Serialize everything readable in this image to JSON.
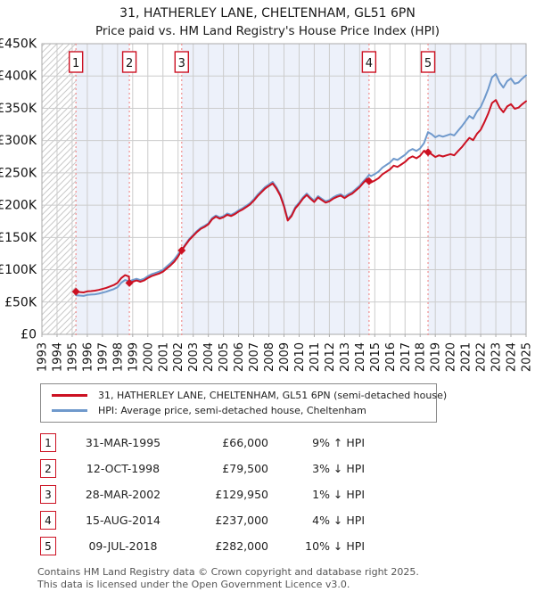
{
  "title": "31, HATHERLEY LANE, CHELTENHAM, GL51 6PN",
  "subtitle": "Price paid vs. HM Land Registry's House Price Index (HPI)",
  "colors": {
    "property_line": "#cc1122",
    "hpi_line": "#6f99cc",
    "band": "#edf1fa",
    "grid": "#cccccc",
    "frame": "#aaaaaa",
    "dashed_sale_line": "#f08f8f",
    "flag_border": "#cc1122",
    "hatch": "#c9c9c9",
    "axis_text": "#111111"
  },
  "chart_data": {
    "type": "line",
    "x_min": 1993,
    "x_max": 2025,
    "y_max": 450,
    "y_ticks": [
      {
        "v": 0,
        "label": "£0"
      },
      {
        "v": 50,
        "label": "£50K"
      },
      {
        "v": 100,
        "label": "£100K"
      },
      {
        "v": 150,
        "label": "£150K"
      },
      {
        "v": 200,
        "label": "£200K"
      },
      {
        "v": 250,
        "label": "£250K"
      },
      {
        "v": 300,
        "label": "£300K"
      },
      {
        "v": 350,
        "label": "£350K"
      },
      {
        "v": 400,
        "label": "£400K"
      },
      {
        "v": 450,
        "label": "£450K"
      }
    ],
    "sales": [
      {
        "n": 1,
        "year": 1995.25,
        "price_k": 66,
        "date": "31-MAR-1995",
        "price": "£66,000",
        "pct": "9% ↑ HPI"
      },
      {
        "n": 2,
        "year": 1998.78,
        "price_k": 79.5,
        "date": "12-OCT-1998",
        "price": "£79,500",
        "pct": "3% ↓ HPI"
      },
      {
        "n": 3,
        "year": 2002.24,
        "price_k": 129.95,
        "date": "28-MAR-2002",
        "price": "£129,950",
        "pct": "1% ↓ HPI"
      },
      {
        "n": 4,
        "year": 2014.62,
        "price_k": 237,
        "date": "15-AUG-2014",
        "price": "£237,000",
        "pct": "4% ↓ HPI"
      },
      {
        "n": 5,
        "year": 2018.52,
        "price_k": 282,
        "date": "09-JUL-2018",
        "price": "£282,000",
        "pct": "10% ↓ HPI"
      }
    ],
    "series": [
      {
        "name": "HPI: Average price, semi-detached house, Cheltenham",
        "color_key": "hpi_line",
        "points": [
          [
            1995.25,
            60.5
          ],
          [
            1995.5,
            60
          ],
          [
            1995.75,
            59.5
          ],
          [
            1996,
            61
          ],
          [
            1996.25,
            61.5
          ],
          [
            1996.5,
            62
          ],
          [
            1996.75,
            63
          ],
          [
            1997,
            64.5
          ],
          [
            1997.25,
            66
          ],
          [
            1997.5,
            68
          ],
          [
            1997.75,
            70
          ],
          [
            1998,
            73
          ],
          [
            1998.25,
            80
          ],
          [
            1998.5,
            84
          ],
          [
            1998.75,
            82
          ],
          [
            1999,
            84
          ],
          [
            1999.25,
            86
          ],
          [
            1999.5,
            84
          ],
          [
            1999.75,
            86
          ],
          [
            2000,
            90
          ],
          [
            2000.25,
            93
          ],
          [
            2000.5,
            95
          ],
          [
            2000.75,
            97
          ],
          [
            2001,
            100
          ],
          [
            2001.25,
            105
          ],
          [
            2001.5,
            110
          ],
          [
            2001.75,
            116
          ],
          [
            2002,
            124
          ],
          [
            2002.25,
            131
          ],
          [
            2002.5,
            140
          ],
          [
            2002.75,
            148
          ],
          [
            2003,
            154
          ],
          [
            2003.25,
            160
          ],
          [
            2003.5,
            165
          ],
          [
            2003.75,
            168
          ],
          [
            2004,
            172
          ],
          [
            2004.25,
            180
          ],
          [
            2004.5,
            184
          ],
          [
            2004.75,
            181
          ],
          [
            2005,
            183
          ],
          [
            2005.25,
            187
          ],
          [
            2005.5,
            185
          ],
          [
            2005.75,
            188
          ],
          [
            2006,
            192
          ],
          [
            2006.25,
            195
          ],
          [
            2006.5,
            199
          ],
          [
            2006.75,
            203
          ],
          [
            2007,
            209
          ],
          [
            2007.25,
            216
          ],
          [
            2007.5,
            222
          ],
          [
            2007.75,
            228
          ],
          [
            2008,
            232
          ],
          [
            2008.25,
            236
          ],
          [
            2008.5,
            228
          ],
          [
            2008.75,
            217
          ],
          [
            2009,
            200
          ],
          [
            2009.25,
            178
          ],
          [
            2009.5,
            185
          ],
          [
            2009.75,
            197
          ],
          [
            2010,
            204
          ],
          [
            2010.25,
            212
          ],
          [
            2010.5,
            218
          ],
          [
            2010.75,
            212
          ],
          [
            2011,
            207
          ],
          [
            2011.25,
            214
          ],
          [
            2011.5,
            210
          ],
          [
            2011.75,
            206
          ],
          [
            2012,
            208
          ],
          [
            2012.25,
            212
          ],
          [
            2012.5,
            215
          ],
          [
            2012.75,
            217
          ],
          [
            2013,
            213
          ],
          [
            2013.25,
            217
          ],
          [
            2013.5,
            220
          ],
          [
            2013.75,
            225
          ],
          [
            2014,
            230
          ],
          [
            2014.25,
            237
          ],
          [
            2014.5,
            243
          ],
          [
            2014.62,
            247
          ],
          [
            2014.75,
            245
          ],
          [
            2015,
            248
          ],
          [
            2015.25,
            252
          ],
          [
            2015.5,
            258
          ],
          [
            2015.75,
            262
          ],
          [
            2016,
            266
          ],
          [
            2016.25,
            272
          ],
          [
            2016.5,
            270
          ],
          [
            2016.75,
            274
          ],
          [
            2017,
            278
          ],
          [
            2017.25,
            284
          ],
          [
            2017.5,
            287
          ],
          [
            2017.75,
            284
          ],
          [
            2018,
            288
          ],
          [
            2018.25,
            296
          ],
          [
            2018.52,
            313
          ],
          [
            2018.75,
            310
          ],
          [
            2019,
            305
          ],
          [
            2019.25,
            308
          ],
          [
            2019.5,
            306
          ],
          [
            2019.75,
            308
          ],
          [
            2020,
            310
          ],
          [
            2020.25,
            308
          ],
          [
            2020.5,
            315
          ],
          [
            2020.75,
            322
          ],
          [
            2021,
            330
          ],
          [
            2021.25,
            338
          ],
          [
            2021.5,
            334
          ],
          [
            2021.75,
            345
          ],
          [
            2022,
            352
          ],
          [
            2022.25,
            365
          ],
          [
            2022.5,
            380
          ],
          [
            2022.75,
            398
          ],
          [
            2023,
            403
          ],
          [
            2023.25,
            390
          ],
          [
            2023.5,
            382
          ],
          [
            2023.75,
            392
          ],
          [
            2024,
            396
          ],
          [
            2024.25,
            388
          ],
          [
            2024.5,
            390
          ],
          [
            2024.75,
            396
          ],
          [
            2025,
            401
          ]
        ]
      },
      {
        "name": "31, HATHERLEY LANE, CHELTENHAM, GL51 6PN (semi-detached house)",
        "color_key": "property_line",
        "points": [
          [
            1995.25,
            66
          ],
          [
            1995.5,
            65.4
          ],
          [
            1995.75,
            64.9
          ],
          [
            1996,
            66.5
          ],
          [
            1996.25,
            67
          ],
          [
            1996.5,
            67.6
          ],
          [
            1996.75,
            68.7
          ],
          [
            1997,
            70.3
          ],
          [
            1997.25,
            71.9
          ],
          [
            1997.5,
            74.1
          ],
          [
            1997.75,
            76.3
          ],
          [
            1998,
            79.6
          ],
          [
            1998.25,
            87.2
          ],
          [
            1998.5,
            91.6
          ],
          [
            1998.75,
            89.4
          ],
          [
            1998.78,
            79.5
          ],
          [
            1999,
            81.5
          ],
          [
            1999.25,
            83.4
          ],
          [
            1999.5,
            81.5
          ],
          [
            1999.75,
            83.4
          ],
          [
            2000,
            87.3
          ],
          [
            2000.25,
            90.2
          ],
          [
            2000.5,
            92.2
          ],
          [
            2000.75,
            94.1
          ],
          [
            2001,
            97
          ],
          [
            2001.25,
            101.9
          ],
          [
            2001.5,
            106.7
          ],
          [
            2001.75,
            112.5
          ],
          [
            2002,
            120.3
          ],
          [
            2002.24,
            129.95
          ],
          [
            2002.5,
            138.6
          ],
          [
            2002.75,
            146.5
          ],
          [
            2003,
            152.5
          ],
          [
            2003.25,
            158.4
          ],
          [
            2003.5,
            163.4
          ],
          [
            2003.75,
            166.3
          ],
          [
            2004,
            170.3
          ],
          [
            2004.25,
            178.2
          ],
          [
            2004.5,
            182.2
          ],
          [
            2004.75,
            179.2
          ],
          [
            2005,
            181.2
          ],
          [
            2005.25,
            185.1
          ],
          [
            2005.5,
            183.2
          ],
          [
            2005.75,
            186.1
          ],
          [
            2006,
            190.1
          ],
          [
            2006.25,
            193.1
          ],
          [
            2006.5,
            197
          ],
          [
            2006.75,
            201
          ],
          [
            2007,
            206.9
          ],
          [
            2007.25,
            213.8
          ],
          [
            2007.5,
            219.8
          ],
          [
            2007.75,
            225.7
          ],
          [
            2008,
            229.7
          ],
          [
            2008.25,
            233.6
          ],
          [
            2008.5,
            225.7
          ],
          [
            2008.75,
            214.8
          ],
          [
            2009,
            198
          ],
          [
            2009.25,
            176.2
          ],
          [
            2009.5,
            183.2
          ],
          [
            2009.75,
            195
          ],
          [
            2010,
            202
          ],
          [
            2010.25,
            209.9
          ],
          [
            2010.5,
            215.8
          ],
          [
            2010.75,
            209.9
          ],
          [
            2011,
            204.9
          ],
          [
            2011.25,
            211.9
          ],
          [
            2011.5,
            207.9
          ],
          [
            2011.75,
            203.9
          ],
          [
            2012,
            205.9
          ],
          [
            2012.25,
            209.9
          ],
          [
            2012.5,
            212.9
          ],
          [
            2012.75,
            214.8
          ],
          [
            2013,
            210.9
          ],
          [
            2013.25,
            214.8
          ],
          [
            2013.5,
            217.8
          ],
          [
            2013.75,
            222.8
          ],
          [
            2014,
            227.7
          ],
          [
            2014.25,
            234.6
          ],
          [
            2014.5,
            240.6
          ],
          [
            2014.62,
            237
          ],
          [
            2014.75,
            235.2
          ],
          [
            2015,
            238.1
          ],
          [
            2015.25,
            241.9
          ],
          [
            2015.5,
            247.7
          ],
          [
            2015.75,
            251.5
          ],
          [
            2016,
            255.4
          ],
          [
            2016.25,
            261.1
          ],
          [
            2016.5,
            259.2
          ],
          [
            2016.75,
            263
          ],
          [
            2017,
            266.9
          ],
          [
            2017.25,
            272.6
          ],
          [
            2017.5,
            275.5
          ],
          [
            2017.75,
            272.6
          ],
          [
            2018,
            276.5
          ],
          [
            2018.25,
            284.2
          ],
          [
            2018.52,
            282
          ],
          [
            2018.75,
            279
          ],
          [
            2019,
            274.5
          ],
          [
            2019.25,
            277.2
          ],
          [
            2019.5,
            275.4
          ],
          [
            2019.75,
            277.2
          ],
          [
            2020,
            279
          ],
          [
            2020.25,
            277.2
          ],
          [
            2020.5,
            283.5
          ],
          [
            2020.75,
            289.8
          ],
          [
            2021,
            297
          ],
          [
            2021.25,
            304.2
          ],
          [
            2021.5,
            300.6
          ],
          [
            2021.75,
            310.5
          ],
          [
            2022,
            316.8
          ],
          [
            2022.25,
            328.5
          ],
          [
            2022.5,
            342
          ],
          [
            2022.75,
            358.2
          ],
          [
            2023,
            362.7
          ],
          [
            2023.25,
            351
          ],
          [
            2023.5,
            343.8
          ],
          [
            2023.75,
            352.8
          ],
          [
            2024,
            356.4
          ],
          [
            2024.25,
            349.2
          ],
          [
            2024.5,
            351
          ],
          [
            2024.75,
            356.4
          ],
          [
            2025,
            360.9
          ]
        ]
      }
    ]
  },
  "legend": {
    "items": [
      {
        "label": "31, HATHERLEY LANE, CHELTENHAM, GL51 6PN (semi-detached house)",
        "color_key": "property_line"
      },
      {
        "label": "HPI: Average price, semi-detached house, Cheltenham",
        "color_key": "hpi_line"
      }
    ]
  },
  "table": {
    "rows": [
      {
        "num": "1",
        "date": "31-MAR-1995",
        "price": "£66,000",
        "pct": "9% ↑ HPI"
      },
      {
        "num": "2",
        "date": "12-OCT-1998",
        "price": "£79,500",
        "pct": "3% ↓ HPI"
      },
      {
        "num": "3",
        "date": "28-MAR-2002",
        "price": "£129,950",
        "pct": "1% ↓ HPI"
      },
      {
        "num": "4",
        "date": "15-AUG-2014",
        "price": "£237,000",
        "pct": "4% ↓ HPI"
      },
      {
        "num": "5",
        "date": "09-JUL-2018",
        "price": "£282,000",
        "pct": "10% ↓ HPI"
      }
    ]
  },
  "footer": {
    "line1": "Contains HM Land Registry data © Crown copyright and database right 2025.",
    "line2": "This data is licensed under the Open Government Licence v3.0."
  }
}
